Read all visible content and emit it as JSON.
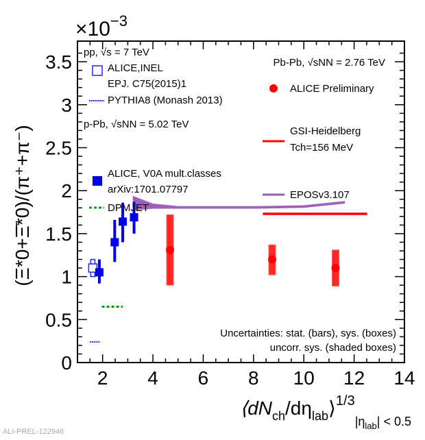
{
  "chart_data": {
    "type": "scatter",
    "xlabel": "⟨dNch/dηlab⟩^1/3 |ηlab| < 0.5",
    "xlabel_parts": {
      "main": "⟨dN",
      "sub1": "ch",
      "mid": "/dη",
      "sub2": "lab",
      "close": "⟩",
      "sup": "1/3",
      "cond_pre": "|η",
      "cond_sub": "lab",
      "cond_post": "| < 0.5"
    },
    "ylabel": "(Ξ*0+Ξ̄*0)/(π⁺+π⁻)",
    "yscale_label": "×10",
    "yscale_exp": "−3",
    "xlim": [
      1,
      14
    ],
    "ylim": [
      0,
      3.74
    ],
    "xticks": [
      2,
      4,
      6,
      8,
      10,
      12,
      14
    ],
    "yticks": [
      0,
      0.5,
      1,
      1.5,
      2,
      2.5,
      3,
      3.5
    ],
    "ytick_labels": [
      "0",
      "0.5",
      "1",
      "1.5",
      "2",
      "2.5",
      "3",
      "3.5"
    ],
    "xtick_labels": [
      "2",
      "4",
      "6",
      "8",
      "10",
      "12",
      "14"
    ],
    "legend_left": {
      "pp_header": "pp, √s = 7 TeV",
      "pp_inel_1": "ALICE,INEL",
      "pp_inel_2": "EPJ. C75(2015)1",
      "pythia": "PYTHIA8 (Monash 2013)",
      "ppb_header": "p-Pb, √sNN = 5.02 TeV",
      "ppb_data_1": "ALICE, V0A mult.classes",
      "ppb_data_2": "arXiv:1701.07797",
      "dpmjet": "DPMJET"
    },
    "legend_right": {
      "pbpb_header": "Pb-Pb, √sNN = 2.76 TeV",
      "pbpb_data": "ALICE Preliminary",
      "gsi_1": "GSI-Heidelberg",
      "gsi_2": "Tch=156 MeV",
      "epos": "EPOSv3.107"
    },
    "annotation_1": "Uncertainties: stat. (bars), sys. (boxes)",
    "annotation_2": "uncorr. sys. (shaded boxes)",
    "watermark": "ALI-PREL-122946",
    "colors": {
      "pp": "#2222ff",
      "ppb": "#0000ee",
      "pbpb": "#ff0000",
      "gsi": "#ff0000",
      "epos": "#8e44ad",
      "dpmjet": "#00a000"
    },
    "series": [
      {
        "name": "pp ALICE INEL",
        "points": [
          {
            "x": 1.61,
            "y": 1.1,
            "sys": [
              1.0,
              1.2
            ]
          }
        ]
      },
      {
        "name": "p-Pb ALICE V0A",
        "points": [
          {
            "x": 1.87,
            "y": 1.05,
            "stat": [
              0.92,
              1.2
            ],
            "sys": [
              1.0,
              1.1
            ]
          },
          {
            "x": 2.48,
            "y": 1.4,
            "stat": [
              1.17,
              1.66
            ],
            "sys": [
              1.35,
              1.45
            ]
          },
          {
            "x": 2.8,
            "y": 1.64,
            "stat": [
              1.4,
              1.86
            ],
            "sys": [
              1.58,
              1.7
            ]
          },
          {
            "x": 3.25,
            "y": 1.69,
            "stat": [
              1.5,
              1.87
            ],
            "sys": [
              1.63,
              1.75
            ]
          }
        ]
      },
      {
        "name": "Pb-Pb ALICE Preliminary",
        "points": [
          {
            "x": 4.68,
            "y": 1.31,
            "sys": [
              0.9,
              1.72
            ]
          },
          {
            "x": 8.74,
            "y": 1.2,
            "sys": [
              1.02,
              1.37
            ]
          },
          {
            "x": 11.26,
            "y": 1.1,
            "sys": [
              0.89,
              1.31
            ]
          }
        ]
      },
      {
        "name": "PYTHIA8",
        "line": {
          "x": [
            1.5,
            1.9
          ],
          "y": 0.24
        }
      },
      {
        "name": "DPMJET",
        "line": {
          "x": [
            1.97,
            2.8
          ],
          "y": 0.65
        }
      },
      {
        "name": "GSI-Heidelberg",
        "line": {
          "x": [
            8.37,
            12.52
          ],
          "y": 1.73
        }
      },
      {
        "name": "EPOSv3.107",
        "band": {
          "x": [
            3.2,
            4,
            5,
            6,
            8,
            10,
            11,
            11.63
          ],
          "low": [
            1.77,
            1.79,
            1.79,
            1.79,
            1.79,
            1.8,
            1.83,
            1.85
          ],
          "high": [
            1.94,
            1.85,
            1.82,
            1.82,
            1.82,
            1.83,
            1.86,
            1.88
          ]
        }
      }
    ]
  }
}
